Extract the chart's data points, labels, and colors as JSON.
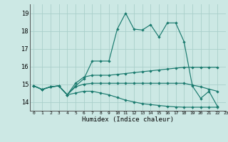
{
  "title": "",
  "xlabel": "Humidex (Indice chaleur)",
  "bg_color": "#cce8e4",
  "grid_color": "#aacfca",
  "line_color": "#1a7a6e",
  "xlim": [
    -0.5,
    23
  ],
  "ylim": [
    13.5,
    19.5
  ],
  "yticks": [
    14,
    15,
    16,
    17,
    18,
    19
  ],
  "xtick_labels": [
    "0",
    "1",
    "2",
    "3",
    "4",
    "5",
    "6",
    "7",
    "8",
    "9",
    "10",
    "11",
    "12",
    "13",
    "14",
    "15",
    "16",
    "17",
    "18",
    "19",
    "20",
    "21",
    "22",
    "23"
  ],
  "series": [
    [
      14.9,
      14.7,
      14.85,
      14.9,
      14.4,
      14.9,
      15.3,
      16.3,
      16.3,
      16.3,
      18.1,
      19.0,
      18.1,
      18.05,
      18.35,
      17.65,
      18.45,
      18.45,
      17.4,
      14.9,
      14.2,
      14.6,
      13.75
    ],
    [
      14.9,
      14.7,
      14.85,
      14.9,
      14.4,
      15.05,
      15.4,
      15.5,
      15.5,
      15.5,
      15.55,
      15.6,
      15.65,
      15.7,
      15.75,
      15.8,
      15.85,
      15.9,
      15.95,
      15.95,
      15.95,
      15.95,
      15.95
    ],
    [
      14.9,
      14.7,
      14.85,
      14.9,
      14.4,
      14.85,
      15.0,
      15.05,
      15.05,
      15.05,
      15.05,
      15.05,
      15.05,
      15.05,
      15.05,
      15.05,
      15.05,
      15.05,
      15.05,
      14.95,
      14.85,
      14.72,
      14.6
    ],
    [
      14.9,
      14.7,
      14.85,
      14.9,
      14.4,
      14.5,
      14.6,
      14.6,
      14.5,
      14.4,
      14.25,
      14.1,
      14.0,
      13.9,
      13.85,
      13.8,
      13.75,
      13.72,
      13.7,
      13.7,
      13.7,
      13.7,
      13.7
    ]
  ]
}
